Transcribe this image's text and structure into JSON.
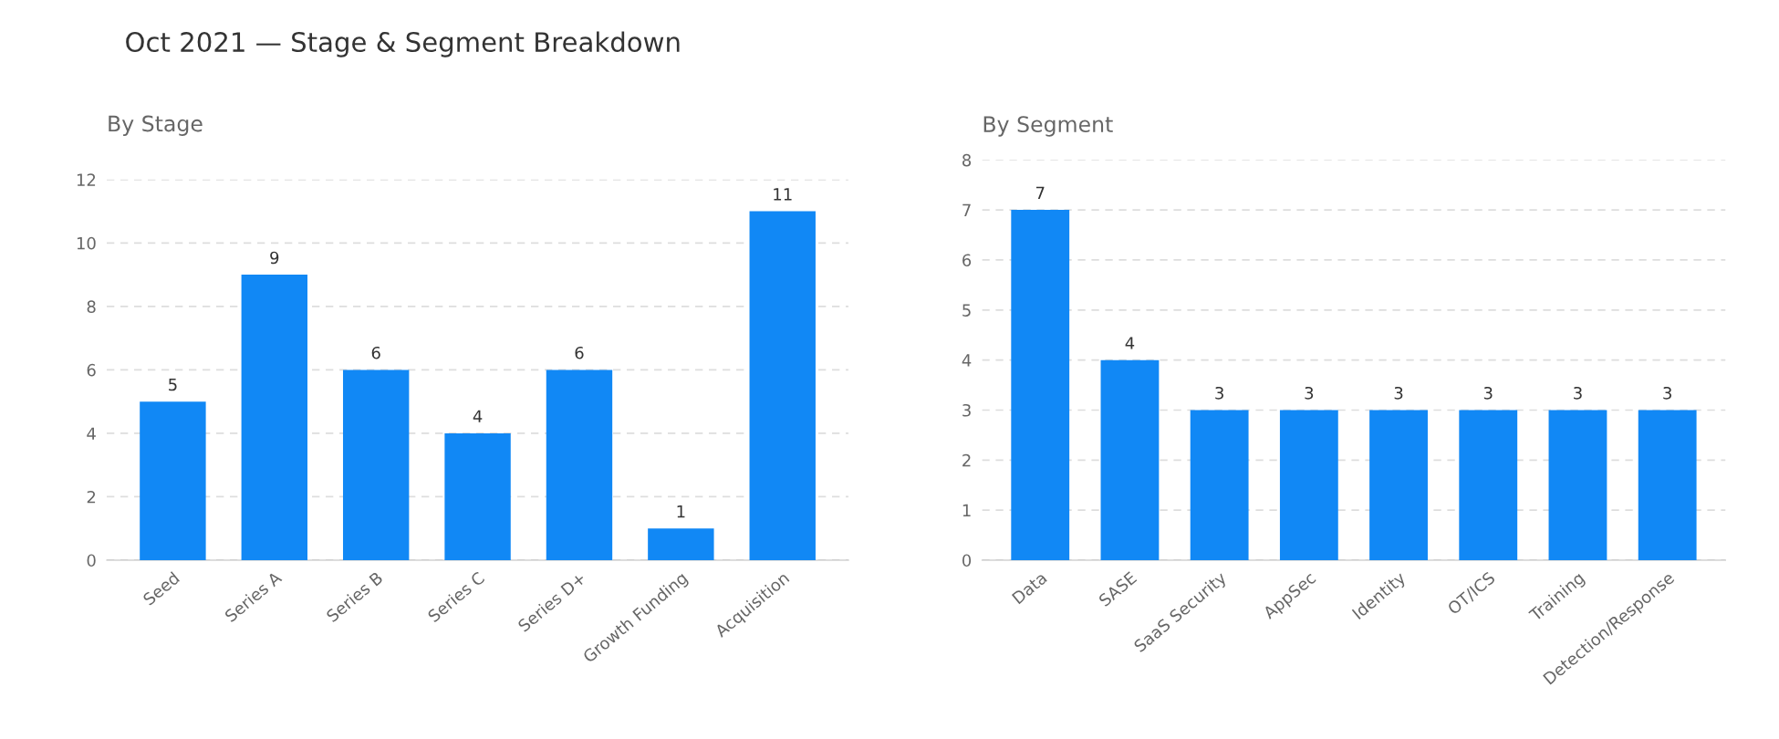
{
  "chart_data": [
    {
      "type": "bar",
      "title": "By Stage",
      "categories": [
        "Seed",
        "Series A",
        "Series B",
        "Series C",
        "Series D+",
        "Growth Funding",
        "Acquisition"
      ],
      "values": [
        5,
        9,
        6,
        4,
        6,
        1,
        11
      ],
      "color": "#1188f5",
      "ylim": [
        0,
        12
      ],
      "yticks": [
        0,
        2,
        4,
        6,
        8,
        10,
        12
      ],
      "grid": "y",
      "data_labels": true,
      "subtitle": "Oct 2021 — Stage & Segment Breakdown"
    },
    {
      "type": "bar",
      "title": "By Segment",
      "categories": [
        "Data",
        "SASE",
        "SaaS Security",
        "AppSec",
        "Identity",
        "OT/ICS",
        "Training",
        "Detection/Response"
      ],
      "values": [
        7,
        4,
        3,
        3,
        3,
        3,
        3,
        3
      ],
      "color": "#1188f5",
      "ylim": [
        0,
        8
      ],
      "yticks": [
        0,
        1,
        2,
        3,
        4,
        5,
        6,
        7,
        8
      ],
      "grid": "y",
      "data_labels": true
    }
  ]
}
